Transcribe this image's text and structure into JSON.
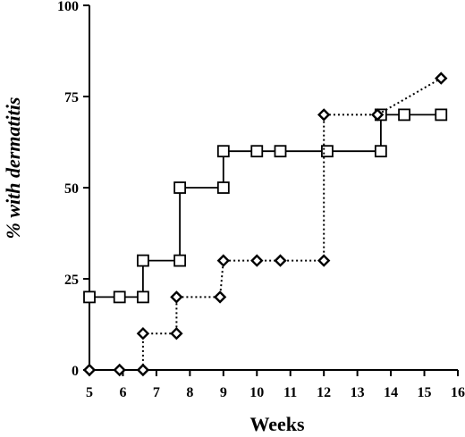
{
  "chart_data": {
    "type": "line",
    "title": "",
    "xlabel": "Weeks",
    "ylabel": "% with dermatitis",
    "xlim": [
      5,
      16
    ],
    "ylim": [
      0,
      100
    ],
    "xticks": [
      "5",
      "6",
      "7",
      "8",
      "9",
      "10",
      "11",
      "12",
      "13",
      "14",
      "15",
      "16"
    ],
    "yticks": [
      "0",
      "25",
      "50",
      "75",
      "100"
    ],
    "step": true,
    "legend": "none",
    "grid": false,
    "series": [
      {
        "marker": "square",
        "line_style": "solid",
        "color": "#000000",
        "points": [
          {
            "x": 5.0,
            "y": 20
          },
          {
            "x": 5.9,
            "y": 20
          },
          {
            "x": 6.6,
            "y": 20
          },
          {
            "x": 6.6,
            "y": 30
          },
          {
            "x": 7.7,
            "y": 30
          },
          {
            "x": 7.7,
            "y": 50
          },
          {
            "x": 9.0,
            "y": 50
          },
          {
            "x": 9.0,
            "y": 60
          },
          {
            "x": 10.0,
            "y": 60
          },
          {
            "x": 10.7,
            "y": 60
          },
          {
            "x": 12.1,
            "y": 60
          },
          {
            "x": 13.7,
            "y": 60
          },
          {
            "x": 13.7,
            "y": 70
          },
          {
            "x": 14.4,
            "y": 70
          },
          {
            "x": 15.5,
            "y": 70
          }
        ]
      },
      {
        "marker": "diamond",
        "line_style": "dotted",
        "color": "#000000",
        "points": [
          {
            "x": 5.0,
            "y": 0
          },
          {
            "x": 5.9,
            "y": 0
          },
          {
            "x": 6.6,
            "y": 0
          },
          {
            "x": 6.6,
            "y": 10
          },
          {
            "x": 7.6,
            "y": 10
          },
          {
            "x": 7.6,
            "y": 20
          },
          {
            "x": 8.9,
            "y": 20
          },
          {
            "x": 9.0,
            "y": 30
          },
          {
            "x": 10.0,
            "y": 30
          },
          {
            "x": 10.7,
            "y": 30
          },
          {
            "x": 12.0,
            "y": 30
          },
          {
            "x": 12.0,
            "y": 70
          },
          {
            "x": 13.6,
            "y": 70
          },
          {
            "x": 15.5,
            "y": 80
          }
        ]
      }
    ]
  }
}
